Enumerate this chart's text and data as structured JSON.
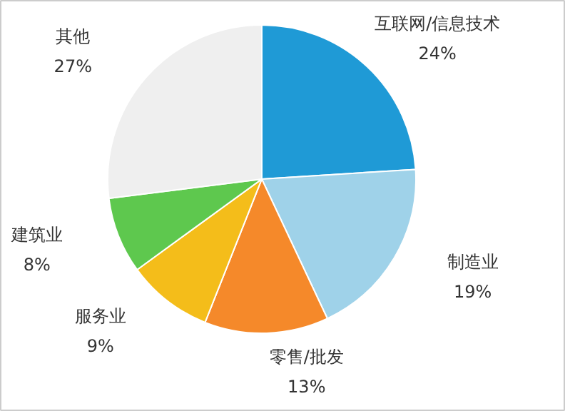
{
  "chart_data": {
    "type": "pie",
    "categories": [
      "互联网/信息技术",
      "制造业",
      "零售/批发",
      "服务业",
      "建筑业",
      "其他"
    ],
    "values": [
      24,
      19,
      13,
      9,
      8,
      27
    ],
    "colors": [
      "#1f9ad6",
      "#9fd2e9",
      "#f5892a",
      "#f4bd1a",
      "#5ec84e",
      "#efefef"
    ],
    "value_labels": [
      "24%",
      "19%",
      "13%",
      "9%",
      "8%",
      "27%"
    ]
  }
}
